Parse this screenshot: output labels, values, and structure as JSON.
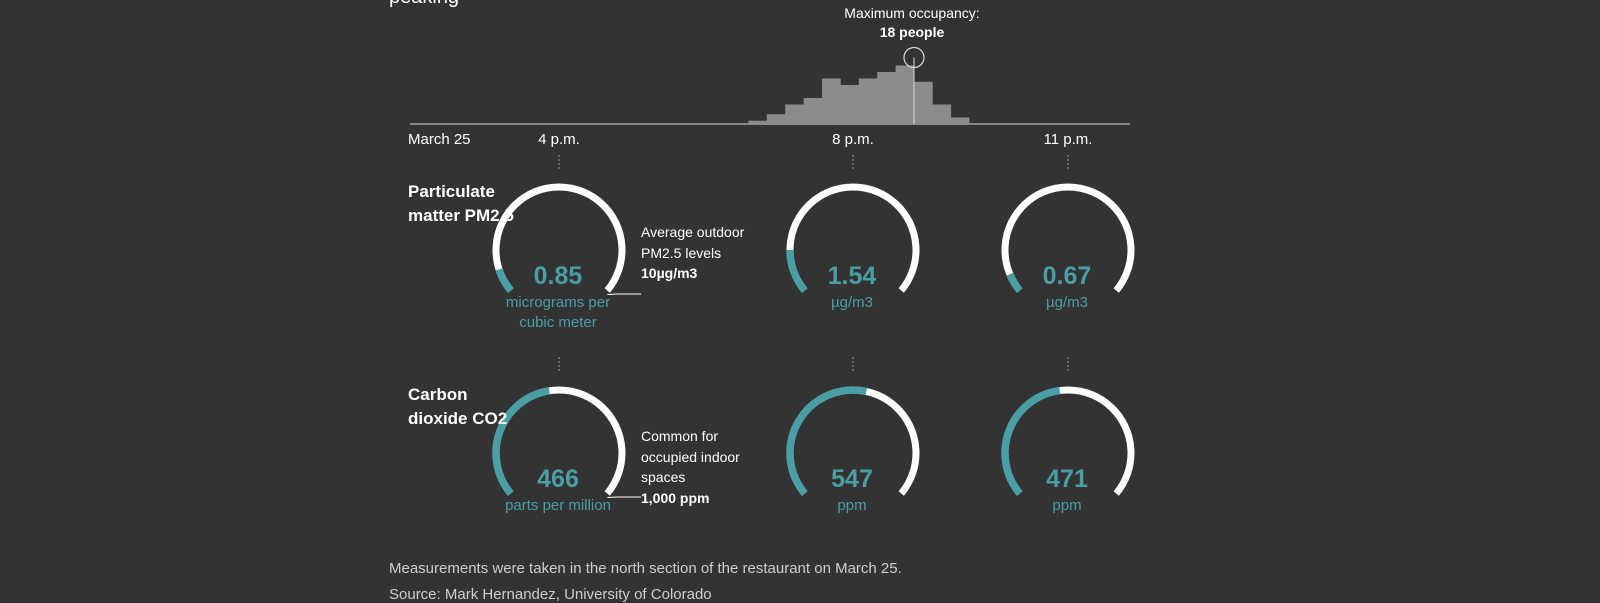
{
  "header": {
    "partial_title": "peaking"
  },
  "chart_data": [
    {
      "type": "bar",
      "description_words": "occupancy histogram",
      "x_ticks": [
        "March 25",
        "4 p.m.",
        "8 p.m.",
        "11 p.m."
      ],
      "values": [
        0,
        0,
        0,
        0,
        0,
        0,
        1,
        3,
        6,
        8,
        14,
        12,
        14,
        16,
        18,
        13,
        6,
        2,
        0,
        0
      ],
      "ylim": [
        0,
        20
      ],
      "annotation": {
        "label": "Maximum occupancy:",
        "value": "18 people"
      }
    },
    {
      "type": "gauge",
      "metric": "Particulate matter PM2.5",
      "times": [
        "4 p.m.",
        "8 p.m.",
        "11 p.m."
      ],
      "values": [
        0.85,
        1.54,
        0.67
      ],
      "max": 10,
      "reference": {
        "text": "Average outdoor PM2.5 levels",
        "value": "10µg/m3"
      }
    },
    {
      "type": "gauge",
      "metric": "Carbon dioxide CO2",
      "times": [
        "4 p.m.",
        "8 p.m.",
        "11 p.m."
      ],
      "values": [
        466,
        547,
        471
      ],
      "max": 1000,
      "reference": {
        "text": "Common for occupied indoor spaces",
        "value": "1,000 ppm"
      }
    }
  ],
  "rows": {
    "pm": {
      "title": "Particulate matter PM2.5",
      "values": [
        "0.85",
        "1.54",
        "0.67"
      ],
      "units": [
        "micrograms per cubic meter",
        "µg/m3",
        "µg/m3"
      ],
      "note_text": "Average outdoor PM2.5 levels",
      "note_value": "10µg/m3"
    },
    "co2": {
      "title": "Carbon dioxide CO2",
      "values": [
        "466",
        "547",
        "471"
      ],
      "units": [
        "parts per million",
        "ppm",
        "ppm"
      ],
      "note_text": "Common for occupied indoor spaces",
      "note_value": "1,000 ppm"
    }
  },
  "footer": {
    "measurement_note": "Measurements were taken in the north section of the restaurant on March 25.",
    "source": "Source: Mark Hernandez, University of Colorado"
  },
  "colors": {
    "background": "#333333",
    "accent": "#4a9fa6",
    "bars": "#8c8c8c",
    "text": "#ffffff"
  }
}
